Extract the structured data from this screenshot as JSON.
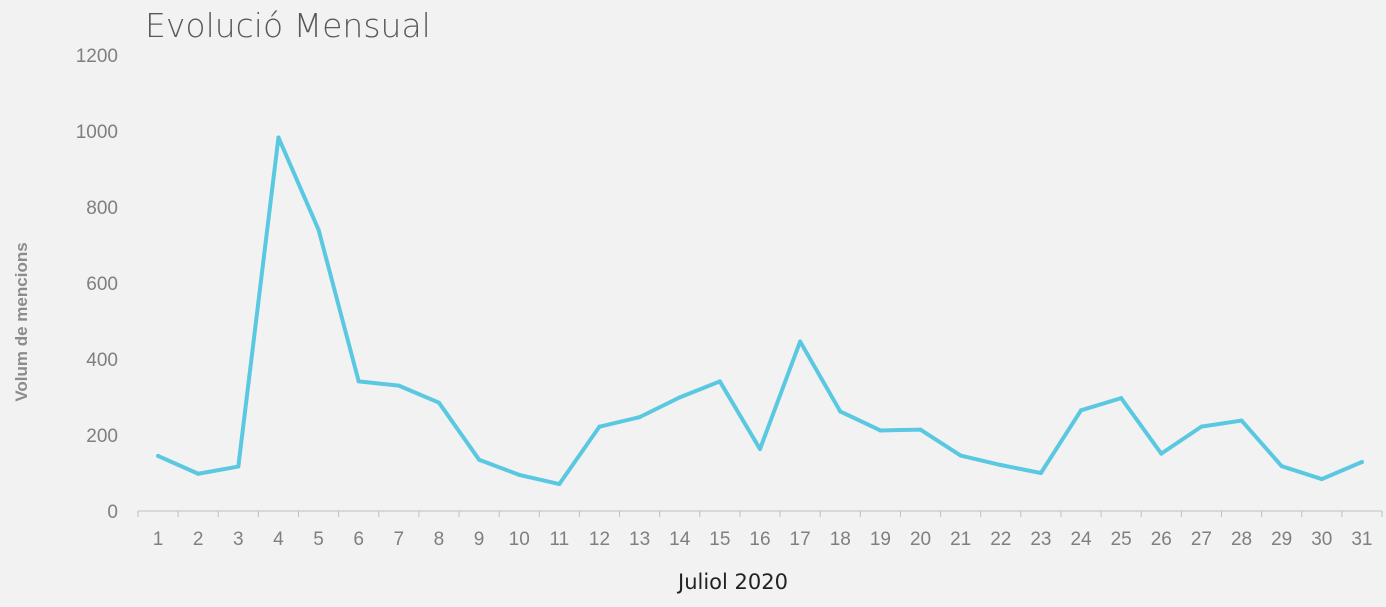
{
  "chart_data": {
    "type": "line",
    "title": "Evolució Mensual",
    "xlabel": "Juliol 2020",
    "ylabel": "Volum de mencions",
    "categories": [
      "1",
      "2",
      "3",
      "4",
      "5",
      "6",
      "7",
      "8",
      "9",
      "10",
      "11",
      "12",
      "13",
      "14",
      "15",
      "16",
      "17",
      "18",
      "19",
      "20",
      "21",
      "22",
      "23",
      "24",
      "25",
      "26",
      "27",
      "28",
      "29",
      "30",
      "31"
    ],
    "series": [
      {
        "values": [
          145,
          98,
          117,
          983,
          740,
          341,
          330,
          285,
          135,
          95,
          71,
          222,
          247,
          299,
          341,
          163,
          446,
          262,
          212,
          214,
          146,
          121,
          100,
          265,
          297,
          151,
          222,
          238,
          118,
          84,
          129
        ],
        "color": "#5bc8e2"
      }
    ],
    "ylim": [
      0,
      1200
    ],
    "yticks": [
      0,
      200,
      400,
      600,
      800,
      1000,
      1200
    ],
    "grid": false,
    "legend": "none",
    "colors": {
      "background": "#f2f2f2",
      "line": "#5bc8e2",
      "axis": "#bfbfbf",
      "tick_text": "#7f7f7f"
    }
  }
}
